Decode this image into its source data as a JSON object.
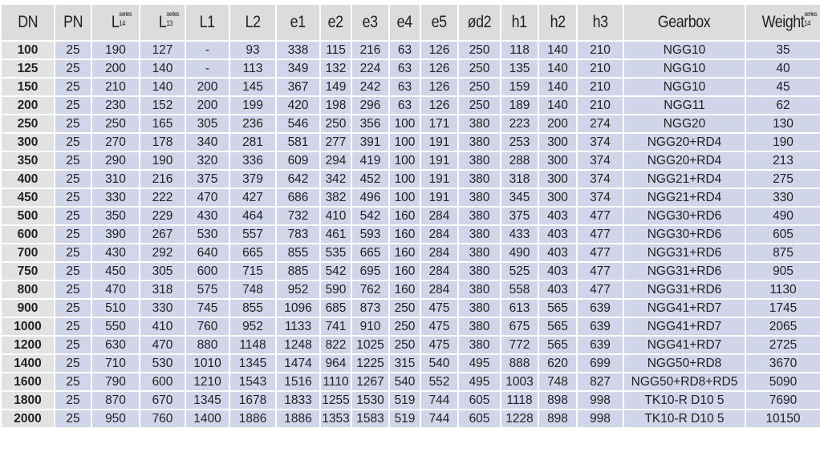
{
  "table": {
    "headers": [
      {
        "label": "DN"
      },
      {
        "label": "PN"
      },
      {
        "label": "L",
        "sup": "series",
        "sub": "14"
      },
      {
        "label": "L",
        "sup": "series",
        "sub": "13"
      },
      {
        "label": "L1"
      },
      {
        "label": "L2"
      },
      {
        "label": "e1"
      },
      {
        "label": "e2"
      },
      {
        "label": "e3"
      },
      {
        "label": "e4"
      },
      {
        "label": "e5"
      },
      {
        "label": "ød2"
      },
      {
        "label": "h1"
      },
      {
        "label": "h2"
      },
      {
        "label": "h3"
      },
      {
        "label": "Gearbox"
      },
      {
        "label": "Weight",
        "sup": "series",
        "sub": "14"
      }
    ],
    "rows": [
      [
        "100",
        "25",
        "190",
        "127",
        "-",
        "93",
        "338",
        "115",
        "216",
        "63",
        "126",
        "250",
        "118",
        "140",
        "210",
        "NGG10",
        "35"
      ],
      [
        "125",
        "25",
        "200",
        "140",
        "-",
        "113",
        "349",
        "132",
        "224",
        "63",
        "126",
        "250",
        "135",
        "140",
        "210",
        "NGG10",
        "40"
      ],
      [
        "150",
        "25",
        "210",
        "140",
        "200",
        "145",
        "367",
        "149",
        "242",
        "63",
        "126",
        "250",
        "159",
        "140",
        "210",
        "NGG10",
        "45"
      ],
      [
        "200",
        "25",
        "230",
        "152",
        "200",
        "199",
        "420",
        "198",
        "296",
        "63",
        "126",
        "250",
        "189",
        "140",
        "210",
        "NGG11",
        "62"
      ],
      [
        "250",
        "25",
        "250",
        "165",
        "305",
        "236",
        "546",
        "250",
        "356",
        "100",
        "171",
        "380",
        "223",
        "200",
        "274",
        "NGG20",
        "130"
      ],
      [
        "300",
        "25",
        "270",
        "178",
        "340",
        "281",
        "581",
        "277",
        "391",
        "100",
        "191",
        "380",
        "253",
        "300",
        "374",
        "NGG20+RD4",
        "190"
      ],
      [
        "350",
        "25",
        "290",
        "190",
        "320",
        "336",
        "609",
        "294",
        "419",
        "100",
        "191",
        "380",
        "288",
        "300",
        "374",
        "NGG20+RD4",
        "213"
      ],
      [
        "400",
        "25",
        "310",
        "216",
        "375",
        "379",
        "642",
        "342",
        "452",
        "100",
        "191",
        "380",
        "318",
        "300",
        "374",
        "NGG21+RD4",
        "275"
      ],
      [
        "450",
        "25",
        "330",
        "222",
        "470",
        "427",
        "686",
        "382",
        "496",
        "100",
        "191",
        "380",
        "345",
        "300",
        "374",
        "NGG21+RD4",
        "330"
      ],
      [
        "500",
        "25",
        "350",
        "229",
        "430",
        "464",
        "732",
        "410",
        "542",
        "160",
        "284",
        "380",
        "375",
        "403",
        "477",
        "NGG30+RD6",
        "490"
      ],
      [
        "600",
        "25",
        "390",
        "267",
        "530",
        "557",
        "783",
        "461",
        "593",
        "160",
        "284",
        "380",
        "433",
        "403",
        "477",
        "NGG30+RD6",
        "605"
      ],
      [
        "700",
        "25",
        "430",
        "292",
        "640",
        "665",
        "855",
        "535",
        "665",
        "160",
        "284",
        "380",
        "490",
        "403",
        "477",
        "NGG31+RD6",
        "875"
      ],
      [
        "750",
        "25",
        "450",
        "305",
        "600",
        "715",
        "885",
        "542",
        "695",
        "160",
        "284",
        "380",
        "525",
        "403",
        "477",
        "NGG31+RD6",
        "905"
      ],
      [
        "800",
        "25",
        "470",
        "318",
        "575",
        "748",
        "952",
        "590",
        "762",
        "160",
        "284",
        "380",
        "558",
        "403",
        "477",
        "NGG31+RD6",
        "1130"
      ],
      [
        "900",
        "25",
        "510",
        "330",
        "745",
        "855",
        "1096",
        "685",
        "873",
        "250",
        "475",
        "380",
        "613",
        "565",
        "639",
        "NGG41+RD7",
        "1745"
      ],
      [
        "1000",
        "25",
        "550",
        "410",
        "760",
        "952",
        "1133",
        "741",
        "910",
        "250",
        "475",
        "380",
        "675",
        "565",
        "639",
        "NGG41+RD7",
        "2065"
      ],
      [
        "1200",
        "25",
        "630",
        "470",
        "880",
        "1148",
        "1248",
        "822",
        "1025",
        "250",
        "475",
        "380",
        "772",
        "565",
        "639",
        "NGG41+RD7",
        "2725"
      ],
      [
        "1400",
        "25",
        "710",
        "530",
        "1010",
        "1345",
        "1474",
        "964",
        "1225",
        "315",
        "540",
        "495",
        "888",
        "620",
        "699",
        "NGG50+RD8",
        "3670"
      ],
      [
        "1600",
        "25",
        "790",
        "600",
        "1210",
        "1543",
        "1516",
        "1110",
        "1267",
        "540",
        "552",
        "495",
        "1003",
        "748",
        "827",
        "NGG50+RD8+RD5",
        "5090"
      ],
      [
        "1800",
        "25",
        "870",
        "670",
        "1345",
        "1678",
        "1833",
        "1255",
        "1530",
        "519",
        "744",
        "605",
        "1118",
        "898",
        "998",
        "TK10-R D10 5",
        "7690"
      ],
      [
        "2000",
        "25",
        "950",
        "760",
        "1400",
        "1886",
        "1886",
        "1353",
        "1583",
        "519",
        "744",
        "605",
        "1228",
        "898",
        "998",
        "TK10-R D10 5",
        "10150"
      ]
    ]
  },
  "colors": {
    "header_bg": "#dcdcdc",
    "cell_bg": "#d0d5e9",
    "dn_bg": "#e2e2e2",
    "grid": "#ffffff"
  }
}
